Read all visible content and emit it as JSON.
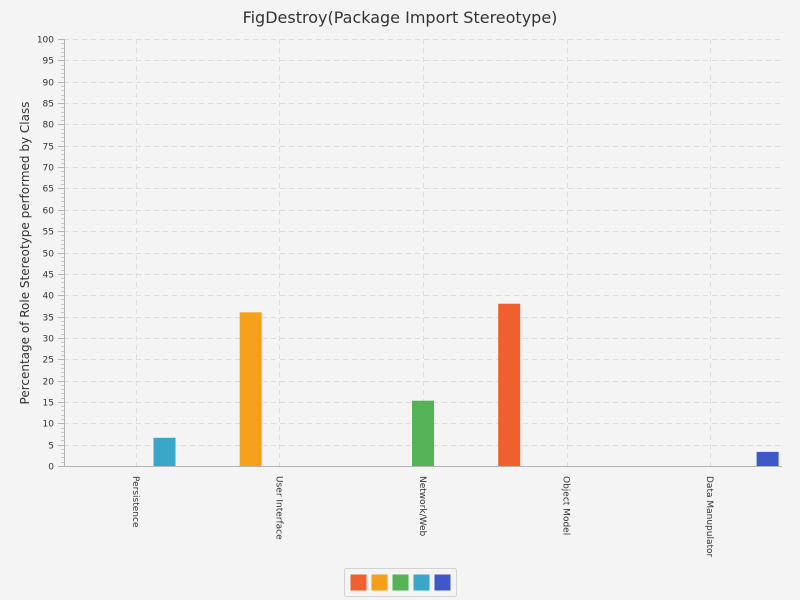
{
  "chart_data": {
    "type": "bar",
    "title": "FigDestroy(Package Import Stereotype)",
    "xlabel": "",
    "ylabel": "Percentage of Role Stereotype performed by Class",
    "ylim": [
      0,
      100
    ],
    "ytick_step": 5,
    "categories": [
      "Persistence",
      "User Interface",
      "Network/Web",
      "Object Model",
      "Data Manupulator"
    ],
    "series": [
      {
        "color": "#f0602e",
        "values": [
          0,
          0,
          0,
          38,
          0
        ]
      },
      {
        "color": "#f5a01c",
        "values": [
          0,
          36,
          0,
          0,
          0
        ]
      },
      {
        "color": "#55b257",
        "values": [
          0,
          0,
          15.3,
          0,
          0
        ]
      },
      {
        "color": "#3aa6c8",
        "values": [
          6.6,
          0,
          0,
          0,
          0
        ]
      },
      {
        "color": "#3f58c8",
        "values": [
          0,
          0,
          0,
          0,
          3.3
        ]
      }
    ],
    "grid": true,
    "legend_position": "bottom-center"
  }
}
